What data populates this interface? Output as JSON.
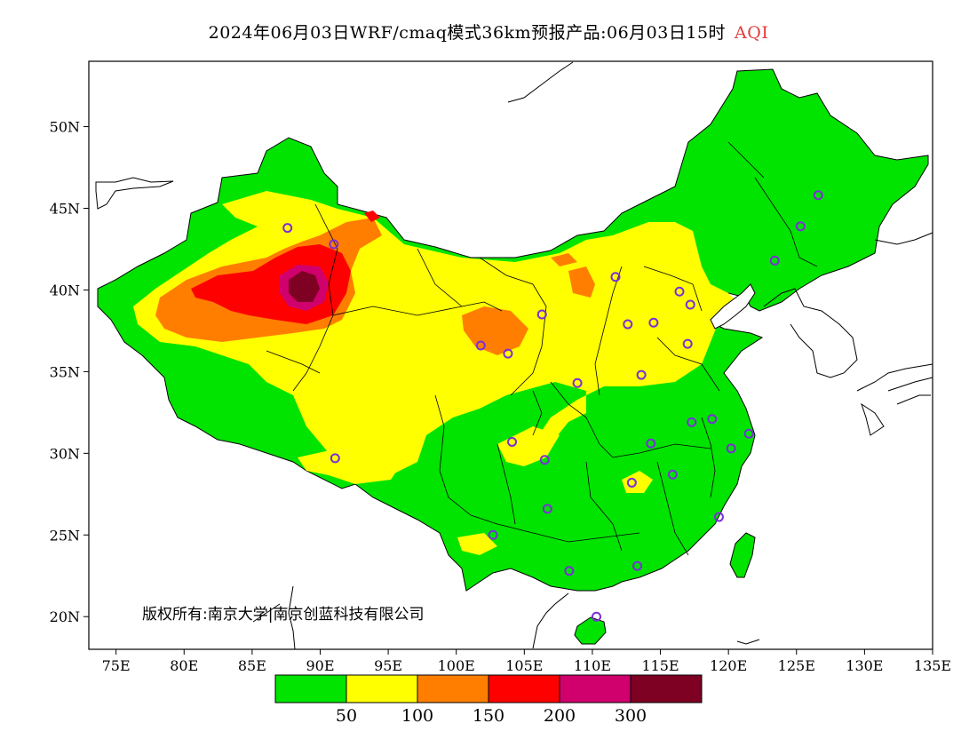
{
  "title": {
    "main": "2024年06月03日WRF/cmaq模式36km预报产品:06月03日15时",
    "variable": "AQI"
  },
  "map": {
    "projection": "lat-lon",
    "lon_range": [
      73,
      135
    ],
    "lat_range": [
      18,
      54
    ],
    "lon_ticks": [
      "75E",
      "80E",
      "85E",
      "90E",
      "95E",
      "100E",
      "105E",
      "110E",
      "115E",
      "120E",
      "125E",
      "130E",
      "135E"
    ],
    "lat_ticks": [
      "20N",
      "25N",
      "30N",
      "35N",
      "40N",
      "45N",
      "50N"
    ],
    "copyright": "版权所有:南京大学|南京创蓝科技有限公司"
  },
  "legend": {
    "colors": [
      "#00e400",
      "#ffff00",
      "#ff7e00",
      "#ff0000",
      "#d0006c",
      "#7e0023"
    ],
    "labels": [
      "50",
      "100",
      "150",
      "200",
      "300"
    ]
  },
  "stations": [
    [
      87.6,
      43.8
    ],
    [
      91.0,
      42.8
    ],
    [
      101.8,
      36.6
    ],
    [
      103.8,
      36.1
    ],
    [
      106.3,
      38.5
    ],
    [
      111.7,
      40.8
    ],
    [
      112.6,
      37.9
    ],
    [
      114.5,
      38.0
    ],
    [
      116.4,
      39.9
    ],
    [
      117.2,
      39.1
    ],
    [
      117.0,
      36.7
    ],
    [
      113.6,
      34.8
    ],
    [
      108.9,
      34.3
    ],
    [
      126.6,
      45.8
    ],
    [
      125.3,
      43.9
    ],
    [
      123.4,
      41.8
    ],
    [
      104.1,
      30.7
    ],
    [
      106.5,
      29.6
    ],
    [
      114.3,
      30.6
    ],
    [
      112.9,
      28.2
    ],
    [
      115.9,
      28.7
    ],
    [
      117.3,
      31.9
    ],
    [
      118.8,
      32.1
    ],
    [
      120.2,
      30.3
    ],
    [
      121.5,
      31.2
    ],
    [
      119.3,
      26.1
    ],
    [
      113.3,
      23.1
    ],
    [
      108.3,
      22.8
    ],
    [
      106.7,
      26.6
    ],
    [
      102.7,
      25.0
    ],
    [
      110.3,
      20.0
    ],
    [
      91.1,
      29.7
    ]
  ]
}
